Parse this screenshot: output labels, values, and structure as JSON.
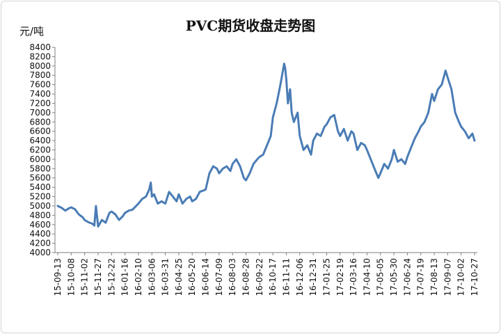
{
  "chart_data": {
    "type": "line",
    "title": "PVC期货收盘走势图",
    "unit_label": "元/吨",
    "xlabel": "",
    "ylabel": "",
    "ylim": [
      4000,
      8400
    ],
    "yticks": [
      4000,
      4200,
      4400,
      4600,
      4800,
      5000,
      5200,
      5400,
      5600,
      5800,
      6000,
      6200,
      6400,
      6600,
      6800,
      7000,
      7200,
      7400,
      7600,
      7800,
      8000,
      8200,
      8400
    ],
    "xtick_labels": [
      "15-09-13",
      "15-10-08",
      "15-11-02",
      "15-11-27",
      "15-12-22",
      "16-01-16",
      "16-02-10",
      "16-03-06",
      "16-03-31",
      "16-04-25",
      "16-05-20",
      "16-06-14",
      "16-07-09",
      "16-08-03",
      "16-08-28",
      "16-09-22",
      "16-10-17",
      "16-11-11",
      "16-12-06",
      "16-12-31",
      "17-01-25",
      "17-02-19",
      "17-03-16",
      "17-04-10",
      "17-05-05",
      "17-05-30",
      "17-06-24",
      "17-07-19",
      "17-08-13",
      "17-09-07",
      "17-10-02",
      "17-10-27"
    ],
    "grid": false,
    "legend": "none",
    "line_color": "#4a7cb5",
    "series": [
      {
        "x": [
          "15-09-13",
          "15-09-20",
          "15-09-27",
          "15-10-04",
          "15-10-08",
          "15-10-15",
          "15-10-22",
          "15-10-29",
          "15-11-02",
          "15-11-09",
          "15-11-16",
          "15-11-20",
          "15-11-23",
          "15-11-27",
          "15-12-04",
          "15-12-11",
          "15-12-18",
          "15-12-22",
          "15-12-29",
          "16-01-05",
          "16-01-12",
          "16-01-16",
          "16-01-23",
          "16-01-30",
          "16-02-10",
          "16-02-17",
          "16-02-24",
          "16-03-01",
          "16-03-04",
          "16-03-06",
          "16-03-10",
          "16-03-17",
          "16-03-24",
          "16-03-31",
          "16-04-07",
          "16-04-14",
          "16-04-21",
          "16-04-25",
          "16-05-02",
          "16-05-09",
          "16-05-16",
          "16-05-20",
          "16-05-27",
          "16-06-03",
          "16-06-14",
          "16-06-21",
          "16-06-28",
          "16-07-05",
          "16-07-09",
          "16-07-16",
          "16-07-23",
          "16-07-30",
          "16-08-03",
          "16-08-10",
          "16-08-17",
          "16-08-24",
          "16-08-28",
          "16-09-04",
          "16-09-11",
          "16-09-18",
          "16-09-22",
          "16-09-29",
          "16-10-06",
          "16-10-13",
          "16-10-17",
          "16-10-24",
          "16-10-31",
          "16-11-07",
          "16-11-09",
          "16-11-11",
          "16-11-14",
          "16-11-18",
          "16-11-21",
          "16-11-25",
          "16-12-02",
          "16-12-06",
          "16-12-13",
          "16-12-20",
          "16-12-27",
          "16-12-31",
          "17-01-07",
          "17-01-14",
          "17-01-21",
          "17-01-25",
          "17-02-01",
          "17-02-08",
          "17-02-15",
          "17-02-19",
          "17-02-26",
          "17-03-05",
          "17-03-12",
          "17-03-16",
          "17-03-23",
          "17-03-30",
          "17-04-06",
          "17-04-10",
          "17-04-17",
          "17-04-24",
          "17-05-01",
          "17-05-05",
          "17-05-12",
          "17-05-19",
          "17-05-26",
          "17-05-30",
          "17-06-06",
          "17-06-13",
          "17-06-20",
          "17-06-24",
          "17-07-01",
          "17-07-08",
          "17-07-15",
          "17-07-19",
          "17-07-26",
          "17-08-02",
          "17-08-09",
          "17-08-13",
          "17-08-20",
          "17-08-27",
          "17-09-03",
          "17-09-07",
          "17-09-14",
          "17-09-21",
          "17-09-28",
          "17-10-02",
          "17-10-09",
          "17-10-16",
          "17-10-23",
          "17-10-27"
        ],
        "values": [
          5000,
          4960,
          4900,
          4950,
          4970,
          4930,
          4820,
          4760,
          4700,
          4650,
          4620,
          4580,
          5000,
          4560,
          4700,
          4640,
          4850,
          4880,
          4820,
          4700,
          4780,
          4850,
          4900,
          4920,
          5050,
          5150,
          5200,
          5350,
          5500,
          5200,
          5250,
          5050,
          5100,
          5050,
          5300,
          5200,
          5100,
          5250,
          5050,
          5150,
          5200,
          5100,
          5150,
          5300,
          5350,
          5700,
          5850,
          5800,
          5700,
          5800,
          5850,
          5750,
          5900,
          6000,
          5850,
          5600,
          5550,
          5700,
          5900,
          6000,
          6050,
          6100,
          6300,
          6500,
          6900,
          7200,
          7600,
          8050,
          7950,
          7700,
          7200,
          7500,
          7000,
          6800,
          7000,
          6500,
          6200,
          6300,
          6100,
          6400,
          6550,
          6500,
          6700,
          6750,
          6900,
          6950,
          6600,
          6500,
          6650,
          6400,
          6600,
          6550,
          6200,
          6350,
          6300,
          6200,
          6000,
          5800,
          5600,
          5700,
          5900,
          5800,
          6000,
          6200,
          5950,
          6000,
          5900,
          6050,
          6250,
          6450,
          6600,
          6700,
          6800,
          7000,
          7400,
          7250,
          7500,
          7600,
          7900,
          7750,
          7500,
          7000,
          6800,
          6700,
          6600,
          6450,
          6550,
          6400
        ]
      }
    ]
  }
}
